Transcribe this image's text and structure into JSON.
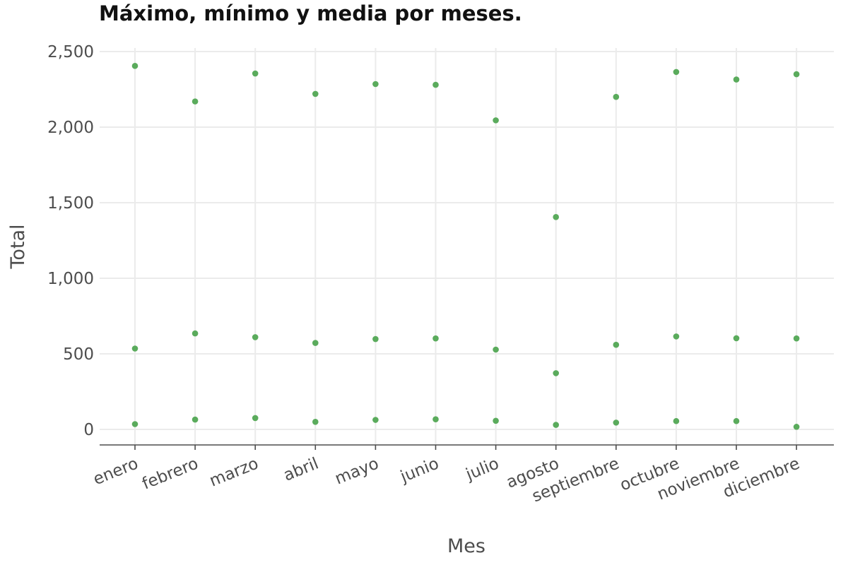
{
  "title": "Máximo, mínimo y media por meses.",
  "chart_data": {
    "type": "scatter",
    "title": "Máximo, mínimo y media por meses.",
    "xlabel": "Mes",
    "ylabel": "Total",
    "categories": [
      "enero",
      "febrero",
      "marzo",
      "abril",
      "mayo",
      "junio",
      "julio",
      "agosto",
      "septiembre",
      "octubre",
      "noviembre",
      "diciembre"
    ],
    "yticks": [
      0,
      500,
      1000,
      1500,
      2000,
      2500
    ],
    "ytick_labels": [
      "0",
      "500",
      "1,000",
      "1,500",
      "2,000",
      "2,500"
    ],
    "ylim": [
      -100,
      2620
    ],
    "grid": true,
    "point_color": "#5aab5c",
    "series": [
      {
        "values": [
          2405,
          2170,
          2355,
          2220,
          2285,
          2280,
          2045,
          1405,
          2200,
          2365,
          2315,
          2350
        ]
      },
      {
        "values": [
          535,
          635,
          610,
          572,
          598,
          602,
          528,
          372,
          560,
          615,
          603,
          602
        ]
      },
      {
        "values": [
          35,
          65,
          75,
          50,
          63,
          67,
          57,
          30,
          45,
          55,
          55,
          17
        ]
      }
    ]
  }
}
